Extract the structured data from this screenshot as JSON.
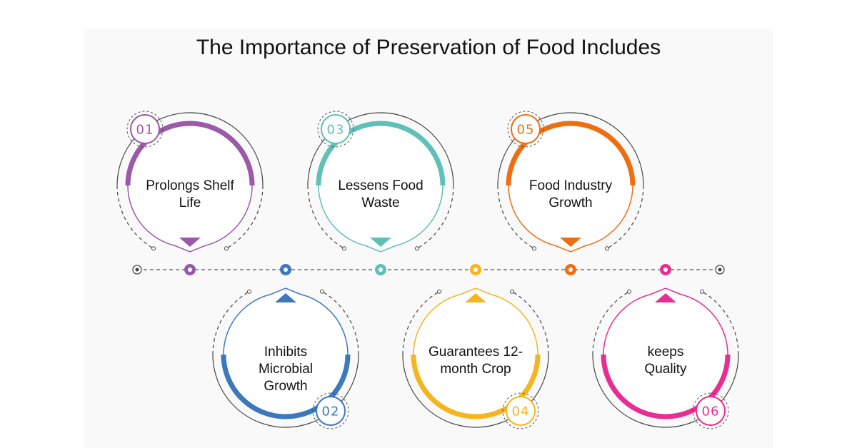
{
  "title": "The Importance of Preservation of Food Includes",
  "items": [
    {
      "number": "01",
      "lines": [
        "Prolongs Shelf",
        "Life"
      ],
      "color": "#9b59a8",
      "position": "top"
    },
    {
      "number": "02",
      "lines": [
        "Inhibits",
        "Microbial",
        "Growth"
      ],
      "color": "#3d78bd",
      "position": "bottom"
    },
    {
      "number": "03",
      "lines": [
        "Lessens Food",
        "Waste"
      ],
      "color": "#5fc0b8",
      "position": "top"
    },
    {
      "number": "04",
      "lines": [
        "Guarantees 12-",
        "month Crop"
      ],
      "color": "#f5b520",
      "position": "bottom"
    },
    {
      "number": "05",
      "lines": [
        "Food Industry",
        "Growth"
      ],
      "color": "#ee6f12",
      "position": "top"
    },
    {
      "number": "06",
      "lines": [
        "keeps",
        "Quality"
      ],
      "color": "#e62e93",
      "position": "bottom"
    }
  ]
}
